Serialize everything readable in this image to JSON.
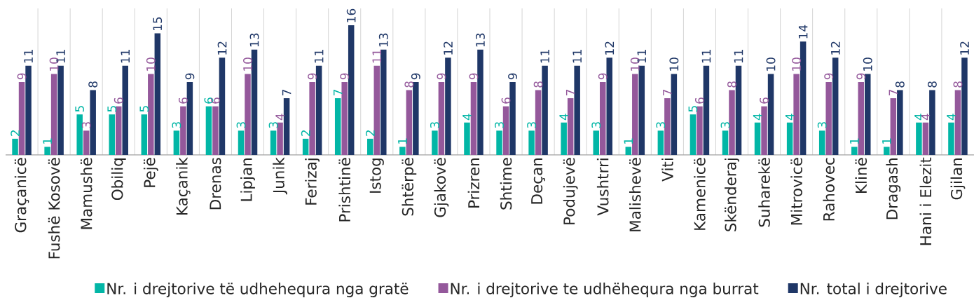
{
  "chart_data": {
    "type": "bar",
    "categories": [
      "Graçanicë",
      "Fushë Kosovë",
      "Mamushë",
      "Obiliq",
      "Pejë",
      "Kaçanik",
      "Drenas",
      "Lipjan",
      "Junik",
      "Ferizaj",
      "Prishtinë",
      "Istog",
      "Shtërpë",
      "Gjakovë",
      "Prizren",
      "Shtime",
      "Deçan",
      "Podujevë",
      "Vushtrri",
      "Malishevë",
      "Viti",
      "Kamenicë",
      "Skënderaj",
      "Suharekë",
      "Mitrovicë",
      "Rahovec",
      "Klinë",
      "Dragash",
      "Hani i Elezit",
      "Gjilan"
    ],
    "series": [
      {
        "name": "Nr. i drejtorive të udhehequra nga gratë",
        "color": "#02b6a6",
        "values": [
          2,
          1,
          5,
          5,
          5,
          3,
          6,
          3,
          3,
          2,
          7,
          2,
          1,
          3,
          4,
          3,
          3,
          4,
          3,
          1,
          3,
          5,
          3,
          4,
          4,
          3,
          1,
          1,
          4,
          4
        ]
      },
      {
        "name": "Nr. i drejtorive te udhëhequra nga burrat",
        "color": "#94589b",
        "values": [
          9,
          10,
          3,
          6,
          10,
          6,
          6,
          10,
          4,
          9,
          9,
          11,
          8,
          9,
          9,
          6,
          8,
          7,
          9,
          10,
          7,
          6,
          8,
          6,
          10,
          9,
          9,
          7,
          4,
          8
        ]
      },
      {
        "name": "Nr. total i drejtorive",
        "color": "#1f3767",
        "values": [
          11,
          11,
          8,
          11,
          15,
          9,
          12,
          13,
          7,
          11,
          16,
          13,
          9,
          12,
          13,
          9,
          11,
          11,
          12,
          11,
          10,
          11,
          11,
          10,
          14,
          12,
          10,
          8,
          8,
          12
        ]
      }
    ],
    "data_labels": true,
    "grid": "x",
    "legend": "bottom"
  }
}
